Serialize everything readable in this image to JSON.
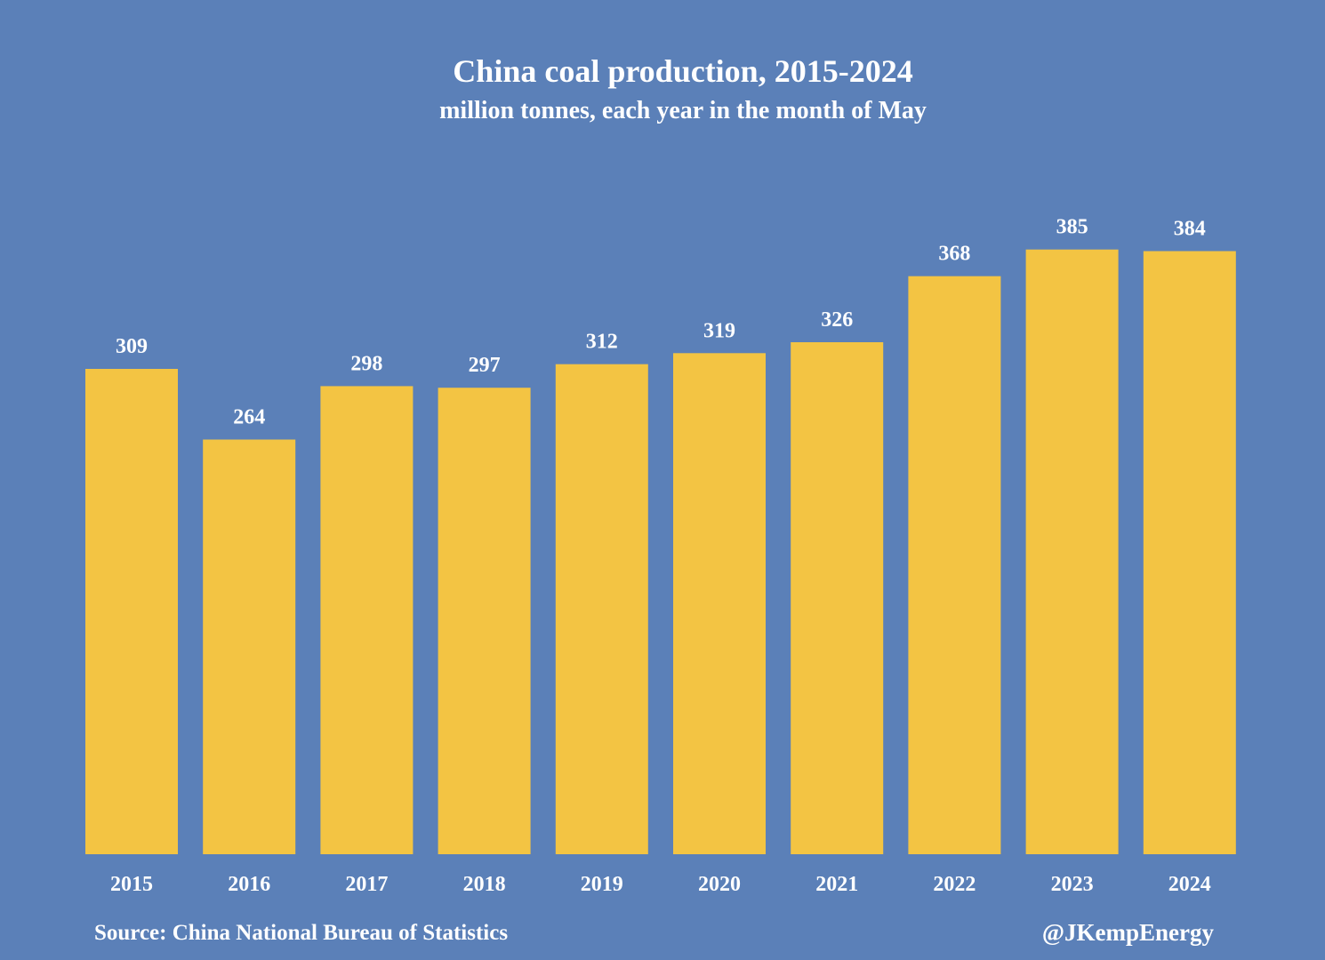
{
  "chart_data": {
    "type": "bar",
    "title": "China coal production, 2015-2024",
    "subtitle": "million tonnes, each year in the month of  May",
    "xlabel": "",
    "ylabel": "",
    "categories": [
      "2015",
      "2016",
      "2017",
      "2018",
      "2019",
      "2020",
      "2021",
      "2022",
      "2023",
      "2024"
    ],
    "values": [
      309,
      264,
      298,
      297,
      312,
      319,
      326,
      368,
      385,
      384
    ],
    "ylim": [
      0,
      430
    ],
    "grid": false,
    "legend": "none",
    "data_labels": true,
    "source": "Source: China National Bureau of Statistics",
    "credit": "@JKempEnergy",
    "colors": {
      "background": "#5b80b8",
      "bar": "#f3c443",
      "text": "#ffffff"
    }
  }
}
